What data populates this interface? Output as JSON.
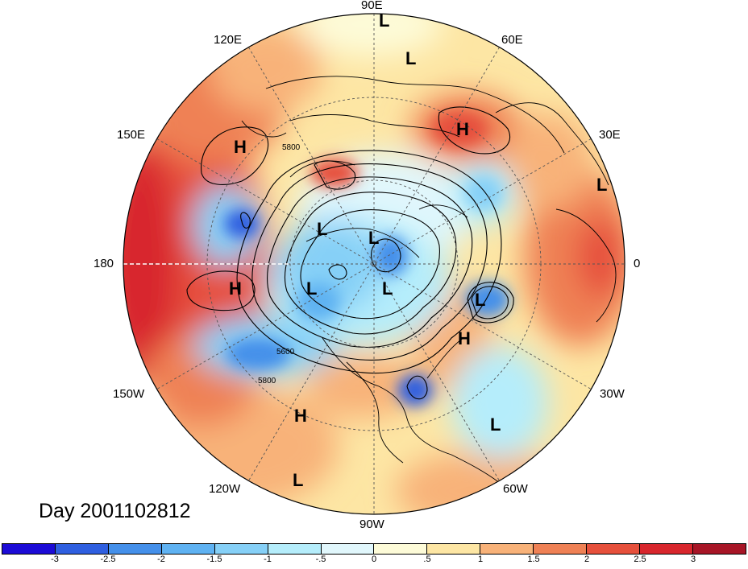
{
  "map": {
    "projection": "north-polar-stereographic",
    "field": "anomaly",
    "palette": [
      "#1c0bd6",
      "#2f5fe0",
      "#4590ea",
      "#5fb2f2",
      "#86d0f7",
      "#b5edfb",
      "#e1f7fc",
      "#fdfbd8",
      "#fde6a4",
      "#f8b279",
      "#ef8155",
      "#e6503c",
      "#d8262d",
      "#a71526"
    ],
    "contour_labels": [
      "5800",
      "5600",
      "5800"
    ],
    "pressure_centers": [
      {
        "type": "L"
      },
      {
        "type": "L"
      },
      {
        "type": "H"
      },
      {
        "type": "H"
      },
      {
        "type": "L"
      },
      {
        "type": "L"
      },
      {
        "type": "L"
      },
      {
        "type": "H"
      },
      {
        "type": "L"
      },
      {
        "type": "L"
      },
      {
        "type": "L"
      },
      {
        "type": "H"
      },
      {
        "type": "H"
      },
      {
        "type": "L"
      },
      {
        "type": "L"
      }
    ]
  },
  "longitude_labels": {
    "lon_90e": "90E",
    "lon_60e": "60E",
    "lon_120e": "120E",
    "lon_150e": "150E",
    "lon_30e": "30E",
    "lon_180": "180",
    "lon_0": "0",
    "lon_150w": "150W",
    "lon_30w": "30W",
    "lon_120w": "120W",
    "lon_60w": "60W",
    "lon_90w": "90W"
  },
  "day_label": "Day 2001102812",
  "colorbar": {
    "ticks": [
      "-3",
      "-2.5",
      "-2",
      "-1.5",
      "-1",
      "-.5",
      "0",
      ".5",
      "1",
      "1.5",
      "2",
      "2.5",
      "3"
    ]
  }
}
